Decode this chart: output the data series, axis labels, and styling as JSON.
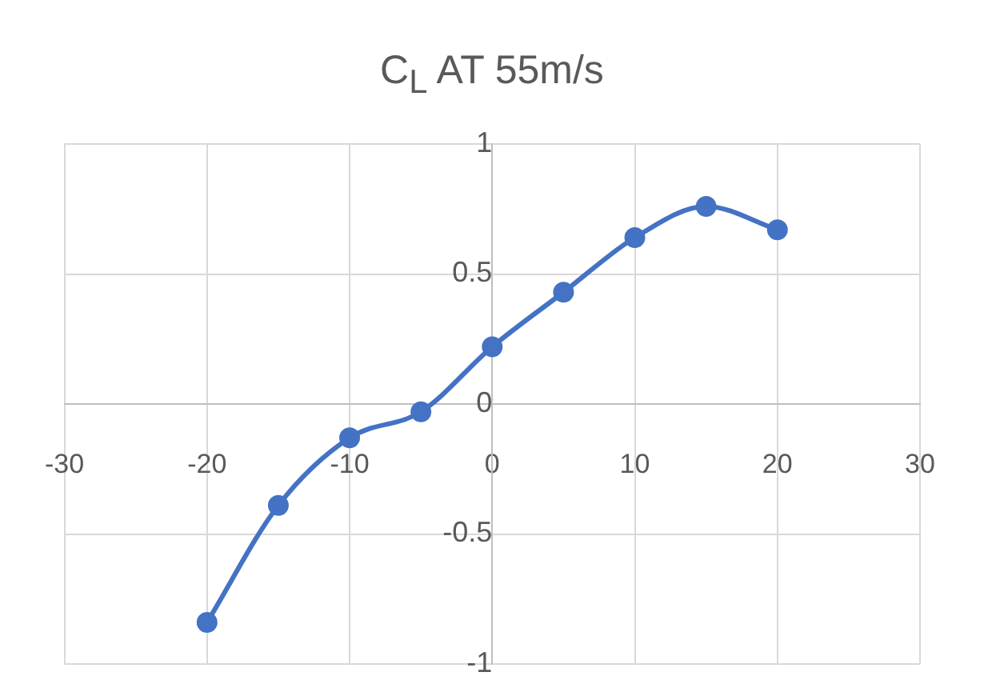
{
  "chart_data": {
    "type": "line",
    "title": "C$_{L}$ AT 55m/s",
    "x": [
      -20,
      -15,
      -10,
      -5,
      0,
      5,
      10,
      15,
      20
    ],
    "series": [
      {
        "color": "#4472c4",
        "values": [
          -0.84,
          -0.39,
          -0.13,
          -0.03,
          0.22,
          0.43,
          0.64,
          0.76,
          0.67
        ]
      }
    ],
    "xlim": [
      -30,
      30
    ],
    "xticks": [
      -30,
      -20,
      -10,
      0,
      10,
      20,
      30
    ],
    "ylim": [
      -1,
      1
    ],
    "yticks": [
      -1,
      -0.5,
      0,
      0.5,
      1
    ],
    "grid": true,
    "legend": false,
    "marker": "circle",
    "line_style": "solid"
  }
}
